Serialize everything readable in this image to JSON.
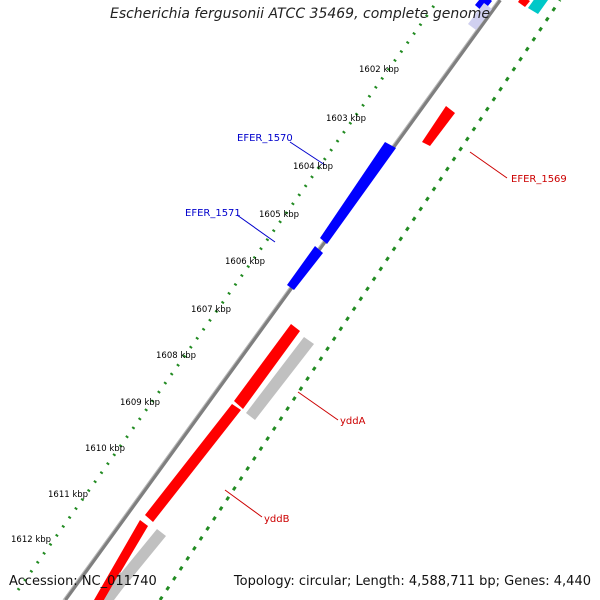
{
  "header": {
    "title": "Escherichia fergusonii ATCC 35469, complete genome"
  },
  "footer": {
    "accession": "Accession: NC_011740",
    "summary": "Topology: circular; Length: 4,588,711 bp; Genes: 4,440"
  },
  "ticks": [
    "1602 kbp",
    "1603 kbp",
    "1604 kbp",
    "1605 kbp",
    "1606 kbp",
    "1607 kbp",
    "1608 kbp",
    "1609 kbp",
    "1610 kbp",
    "1611 kbp",
    "1612 kbp"
  ],
  "genes": [
    {
      "label": "EFER_1570",
      "color": "#0000cc",
      "strand": "forward"
    },
    {
      "label": "EFER_1571",
      "color": "#0000cc",
      "strand": "forward"
    },
    {
      "label": "EFER_1569",
      "color": "#cc0000",
      "strand": "reverse"
    },
    {
      "label": "yddA",
      "color": "#cc0000",
      "strand": "forward"
    },
    {
      "label": "yddB",
      "color": "#cc0000",
      "strand": "forward"
    }
  ],
  "colors": {
    "forward_cds": "#ff0000",
    "forward_cds_blue": "#0000ff",
    "reverse_cds": "#ff0000",
    "shadow": "#c0c0c0",
    "backbone": "#808080",
    "gc_ring": "#228b22",
    "label_blue": "#0000cc",
    "label_red": "#cc0000"
  }
}
